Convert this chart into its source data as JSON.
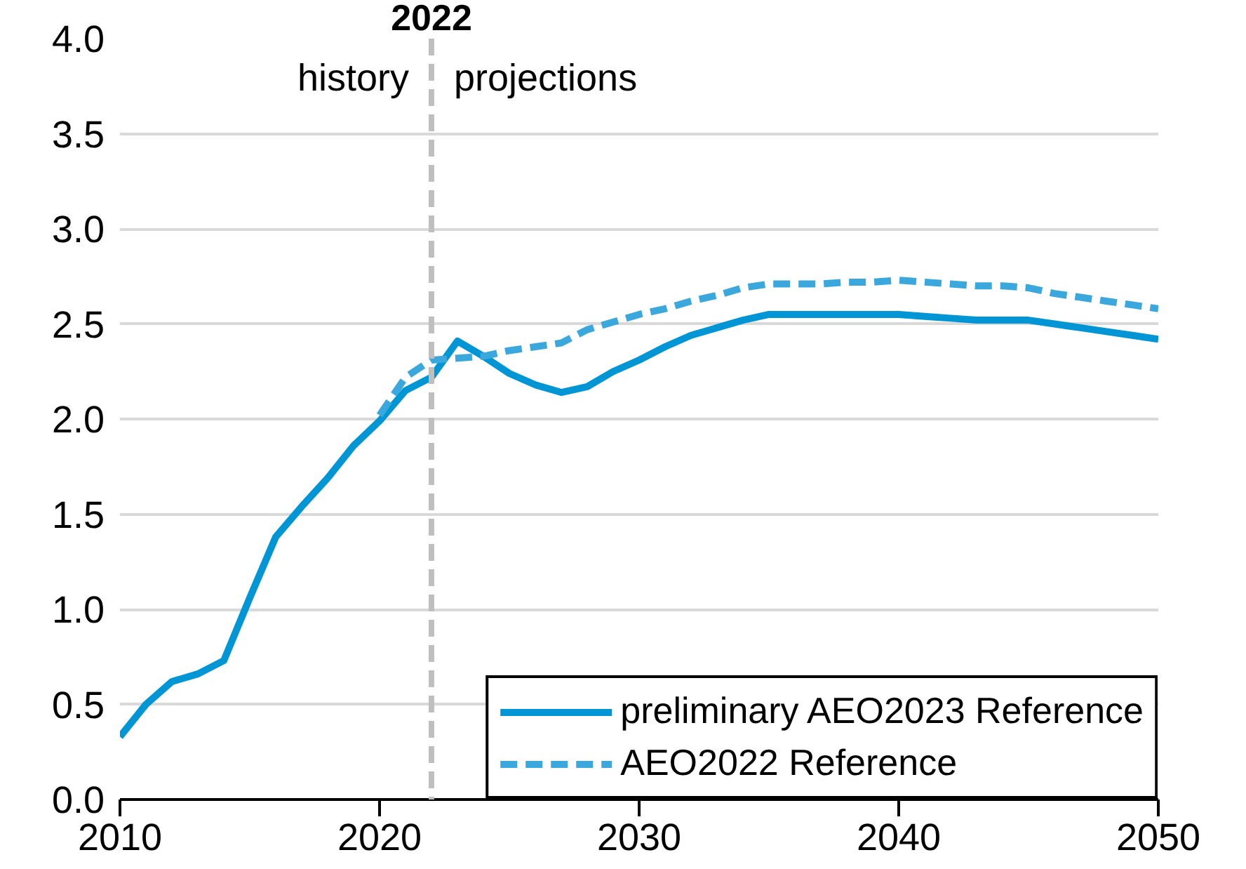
{
  "chart_data": {
    "type": "line",
    "x": [
      2010,
      2011,
      2012,
      2013,
      2014,
      2015,
      2016,
      2017,
      2018,
      2019,
      2020,
      2021,
      2022,
      2023,
      2024,
      2025,
      2026,
      2027,
      2028,
      2029,
      2030,
      2031,
      2032,
      2033,
      2034,
      2035,
      2036,
      2037,
      2038,
      2039,
      2040,
      2041,
      2042,
      2043,
      2044,
      2045,
      2046,
      2047,
      2048,
      2049,
      2050
    ],
    "series": [
      {
        "name": "preliminary AEO2023 Reference",
        "color": "#0096d6",
        "line_style": "solid",
        "values": [
          0.33,
          0.5,
          0.62,
          0.66,
          0.73,
          1.06,
          1.38,
          1.54,
          1.69,
          1.86,
          1.99,
          2.15,
          2.22,
          2.41,
          2.33,
          2.24,
          2.18,
          2.14,
          2.17,
          2.25,
          2.31,
          2.38,
          2.44,
          2.48,
          2.52,
          2.55,
          2.55,
          2.55,
          2.55,
          2.55,
          2.55,
          2.54,
          2.53,
          2.52,
          2.52,
          2.52,
          2.5,
          2.48,
          2.46,
          2.44,
          2.42
        ]
      },
      {
        "name": "AEO2022 Reference",
        "color": "#3aa8dc",
        "line_style": "dashed",
        "values": [
          null,
          null,
          null,
          null,
          null,
          null,
          null,
          null,
          null,
          null,
          2.02,
          2.22,
          2.31,
          2.32,
          2.33,
          2.36,
          2.38,
          2.4,
          2.47,
          2.51,
          2.55,
          2.58,
          2.62,
          2.65,
          2.69,
          2.71,
          2.71,
          2.71,
          2.72,
          2.72,
          2.73,
          2.72,
          2.71,
          2.7,
          2.7,
          2.69,
          2.66,
          2.64,
          2.62,
          2.6,
          2.58
        ]
      }
    ],
    "xlim": [
      2010,
      2050
    ],
    "xticks": [
      2010,
      2020,
      2030,
      2040,
      2050
    ],
    "ylim": [
      0,
      4
    ],
    "yticks": [
      {
        "value": 0,
        "label": "0.0"
      },
      {
        "value": 0.5,
        "label": "0.5"
      },
      {
        "value": 1,
        "label": "1.0"
      },
      {
        "value": 1.5,
        "label": "1.5"
      },
      {
        "value": 2,
        "label": "2.0"
      },
      {
        "value": 2.5,
        "label": "2.5"
      },
      {
        "value": 3,
        "label": "3.0"
      },
      {
        "value": 3.5,
        "label": "3.5"
      },
      {
        "value": 4,
        "label": "4.0"
      }
    ],
    "ref_lines": [
      {
        "axis": "x",
        "value": 2022,
        "label": "2022",
        "color": "#bfbfbf",
        "line_style": "dashed"
      }
    ],
    "annotations": [
      "history",
      "projections"
    ],
    "grid": "y",
    "legend": "bottom right",
    "marker": "none"
  }
}
